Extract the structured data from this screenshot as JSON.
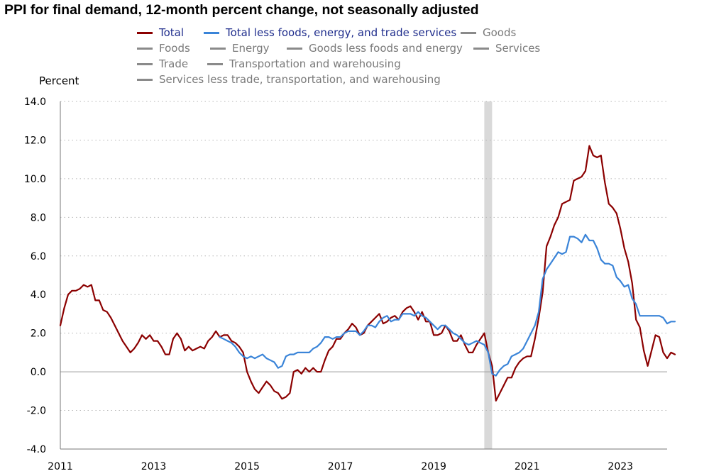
{
  "chart_data": {
    "type": "line",
    "title": "PPI for final demand, 12-month percent change, not seasonally adjusted",
    "ylabel": "Percent",
    "xlabel": "",
    "ylim": [
      -4.0,
      14.0
    ],
    "yticks": [
      "-4.0",
      "-2.0",
      "0.0",
      "2.0",
      "4.0",
      "6.0",
      "8.0",
      "10.0",
      "12.0",
      "14.0"
    ],
    "xlim": [
      2011,
      2024
    ],
    "xticks": [
      "2011",
      "2013",
      "2015",
      "2017",
      "2019",
      "2021",
      "2023"
    ],
    "grid": "horizontal dotted",
    "shaded_period": [
      "2020-02",
      "2020-04"
    ],
    "series": [
      {
        "name": "Total",
        "color": "#8B0000",
        "start": "2011-01",
        "values": [
          2.4,
          3.3,
          4.0,
          4.2,
          4.2,
          4.3,
          4.5,
          4.4,
          4.5,
          3.7,
          3.7,
          3.2,
          3.1,
          2.8,
          2.4,
          2.0,
          1.6,
          1.3,
          1.0,
          1.2,
          1.5,
          1.9,
          1.7,
          1.9,
          1.6,
          1.6,
          1.3,
          0.9,
          0.9,
          1.7,
          2.0,
          1.7,
          1.1,
          1.3,
          1.1,
          1.2,
          1.3,
          1.2,
          1.6,
          1.8,
          2.1,
          1.8,
          1.9,
          1.9,
          1.6,
          1.5,
          1.3,
          1.0,
          0.0,
          -0.5,
          -0.9,
          -1.1,
          -0.8,
          -0.5,
          -0.7,
          -1.0,
          -1.1,
          -1.4,
          -1.3,
          -1.1,
          0.0,
          0.1,
          -0.1,
          0.2,
          0.0,
          0.2,
          0.0,
          0.0,
          0.6,
          1.1,
          1.3,
          1.7,
          1.7,
          2.0,
          2.2,
          2.5,
          2.3,
          1.9,
          2.0,
          2.4,
          2.6,
          2.8,
          3.0,
          2.5,
          2.6,
          2.8,
          2.9,
          2.7,
          3.1,
          3.3,
          3.4,
          3.1,
          2.7,
          3.1,
          2.6,
          2.6,
          1.9,
          1.9,
          2.0,
          2.4,
          2.1,
          1.6,
          1.6,
          1.9,
          1.4,
          1.0,
          1.0,
          1.4,
          1.7,
          2.0,
          1.0,
          0.3,
          -1.5,
          -1.1,
          -0.7,
          -0.3,
          -0.3,
          0.2,
          0.5,
          0.7,
          0.8,
          0.8,
          1.7,
          2.8,
          4.1,
          6.5,
          7.0,
          7.6,
          8.0,
          8.7,
          8.8,
          8.9,
          9.9,
          10.0,
          10.1,
          10.4,
          11.7,
          11.2,
          11.1,
          11.2,
          9.8,
          8.7,
          8.5,
          8.2,
          7.4,
          6.4,
          5.7,
          4.6,
          2.7,
          2.3,
          1.1,
          0.3,
          1.1,
          1.9,
          1.8,
          1.0,
          0.7,
          1.0,
          0.9
        ]
      },
      {
        "name": "Total less foods, energy, and trade services",
        "color": "#3A84D8",
        "start": "2014-06",
        "values": [
          1.8,
          1.7,
          1.6,
          1.5,
          1.3,
          1.0,
          0.8,
          0.7,
          0.8,
          0.7,
          0.8,
          0.9,
          0.7,
          0.6,
          0.5,
          0.2,
          0.3,
          0.8,
          0.9,
          0.9,
          1.0,
          1.0,
          1.0,
          1.0,
          1.2,
          1.3,
          1.5,
          1.8,
          1.8,
          1.7,
          1.8,
          1.8,
          2.0,
          2.1,
          2.1,
          2.1,
          1.9,
          2.1,
          2.4,
          2.4,
          2.3,
          2.6,
          2.8,
          2.9,
          2.6,
          2.7,
          2.7,
          3.0,
          3.0,
          3.0,
          2.9,
          3.1,
          2.9,
          2.8,
          2.6,
          2.4,
          2.2,
          2.4,
          2.4,
          2.2,
          2.0,
          1.9,
          1.7,
          1.5,
          1.4,
          1.5,
          1.6,
          1.5,
          1.4,
          1.0,
          -0.1,
          -0.2,
          0.1,
          0.3,
          0.4,
          0.8,
          0.9,
          1.0,
          1.2,
          1.6,
          2.0,
          2.4,
          3.1,
          4.8,
          5.3,
          5.6,
          5.9,
          6.2,
          6.1,
          6.2,
          7.0,
          7.0,
          6.9,
          6.7,
          7.1,
          6.8,
          6.8,
          6.4,
          5.8,
          5.6,
          5.6,
          5.5,
          4.9,
          4.7,
          4.4,
          4.5,
          3.8,
          3.5,
          2.9,
          2.9,
          2.9,
          2.9,
          2.9,
          2.9,
          2.8,
          2.5,
          2.6,
          2.6
        ]
      }
    ]
  },
  "legend": [
    {
      "label": "Total",
      "color": "#8B0000",
      "text_color": "#1F2D8C",
      "active": true
    },
    {
      "label": "Total less foods, energy, and trade services",
      "color": "#3A84D8",
      "text_color": "#1F2D8C",
      "active": true
    },
    {
      "label": "Goods",
      "color": "#8A8A8A",
      "text_color": "#7A7A7A",
      "active": false
    },
    {
      "label": "Foods",
      "color": "#8A8A8A",
      "text_color": "#7A7A7A",
      "active": false
    },
    {
      "label": "Energy",
      "color": "#8A8A8A",
      "text_color": "#7A7A7A",
      "active": false
    },
    {
      "label": "Goods less foods and energy",
      "color": "#8A8A8A",
      "text_color": "#7A7A7A",
      "active": false
    },
    {
      "label": "Services",
      "color": "#8A8A8A",
      "text_color": "#7A7A7A",
      "active": false
    },
    {
      "label": "Trade",
      "color": "#8A8A8A",
      "text_color": "#7A7A7A",
      "active": false
    },
    {
      "label": "Transportation and warehousing",
      "color": "#8A8A8A",
      "text_color": "#7A7A7A",
      "active": false
    },
    {
      "label": "Services less trade, transportation, and warehousing",
      "color": "#8A8A8A",
      "text_color": "#7A7A7A",
      "active": false
    }
  ]
}
